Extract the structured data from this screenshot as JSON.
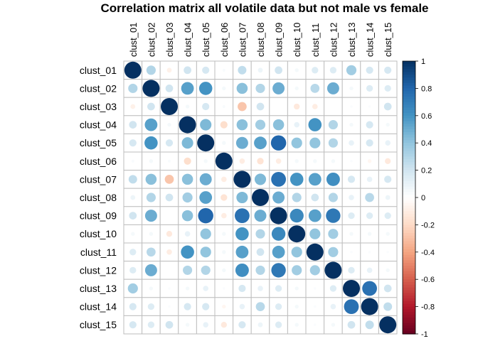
{
  "chart_data": {
    "type": "heatmap",
    "title": "Correlation matrix all volatile data but not male vs female",
    "labels": [
      "clust_01",
      "clust_02",
      "clust_03",
      "clust_04",
      "clust_05",
      "clust_06",
      "clust_07",
      "clust_08",
      "clust_09",
      "clust_10",
      "clust_11",
      "clust_12",
      "clust_13",
      "clust_14",
      "clust_15"
    ],
    "matrix": [
      [
        1.0,
        0.3,
        -0.08,
        0.2,
        0.18,
        0.03,
        0.25,
        0.08,
        0.2,
        0.05,
        0.15,
        0.15,
        0.35,
        0.18,
        0.18
      ],
      [
        0.3,
        1.0,
        0.2,
        0.55,
        0.6,
        0.05,
        0.42,
        0.3,
        0.5,
        0.05,
        0.28,
        0.5,
        0.05,
        0.15,
        0.15
      ],
      [
        -0.08,
        0.2,
        1.0,
        0.05,
        0.18,
        0.03,
        -0.28,
        0.2,
        0.0,
        -0.12,
        -0.1,
        0.0,
        0.02,
        0.02,
        0.2
      ],
      [
        0.2,
        0.55,
        0.05,
        1.0,
        0.45,
        -0.18,
        0.42,
        0.35,
        0.42,
        0.1,
        0.6,
        0.3,
        0.05,
        0.18,
        0.05
      ],
      [
        0.18,
        0.6,
        0.18,
        0.45,
        1.0,
        0.05,
        0.5,
        0.55,
        0.8,
        0.4,
        0.4,
        0.3,
        0.1,
        0.18,
        0.1
      ],
      [
        0.03,
        0.05,
        0.03,
        -0.18,
        0.05,
        1.0,
        -0.1,
        -0.15,
        -0.1,
        0.05,
        0.05,
        0.05,
        0.02,
        -0.05,
        -0.12
      ],
      [
        0.25,
        0.42,
        -0.28,
        0.42,
        0.5,
        -0.1,
        1.0,
        0.45,
        0.75,
        0.6,
        0.55,
        0.62,
        0.18,
        0.1,
        0.18
      ],
      [
        0.08,
        0.3,
        0.2,
        0.35,
        0.55,
        -0.15,
        0.45,
        1.0,
        0.5,
        0.3,
        0.2,
        0.3,
        0.1,
        0.28,
        0.08
      ],
      [
        0.2,
        0.5,
        0.0,
        0.42,
        0.8,
        -0.1,
        0.75,
        0.5,
        1.0,
        0.65,
        0.55,
        0.72,
        0.15,
        0.15,
        0.15
      ],
      [
        0.05,
        0.05,
        -0.12,
        0.1,
        0.4,
        0.05,
        0.6,
        0.3,
        0.65,
        1.0,
        0.4,
        0.35,
        0.05,
        0.05,
        0.05
      ],
      [
        0.15,
        0.28,
        -0.1,
        0.6,
        0.4,
        0.05,
        0.55,
        0.2,
        0.55,
        0.4,
        1.0,
        0.35,
        0.02,
        0.02,
        0.02
      ],
      [
        0.15,
        0.5,
        0.0,
        0.3,
        0.3,
        0.05,
        0.62,
        0.3,
        0.72,
        0.35,
        0.35,
        1.0,
        0.15,
        0.1,
        0.05
      ],
      [
        0.35,
        0.05,
        0.02,
        0.05,
        0.1,
        0.02,
        0.18,
        0.1,
        0.15,
        0.05,
        0.02,
        0.15,
        1.0,
        0.75,
        0.2
      ],
      [
        0.18,
        0.15,
        0.02,
        0.18,
        0.18,
        -0.05,
        0.1,
        0.28,
        0.15,
        0.05,
        0.02,
        0.1,
        0.75,
        1.0,
        0.25
      ],
      [
        0.18,
        0.15,
        0.2,
        0.05,
        0.1,
        -0.12,
        0.18,
        0.08,
        0.15,
        0.05,
        0.02,
        0.05,
        0.2,
        0.25,
        1.0
      ]
    ],
    "colorbar": {
      "range": [
        -1,
        1
      ],
      "ticks": [
        "-1",
        "-0.8",
        "-0.6",
        "-0.4",
        "-0.2",
        "0",
        "0.2",
        "0.4",
        "0.6",
        "0.8",
        "1"
      ],
      "colors": [
        "#67001F",
        "#B2182B",
        "#D6604D",
        "#F4A582",
        "#FDDBC7",
        "#FFFFFF",
        "#D1E5F0",
        "#92C5DE",
        "#4393C3",
        "#2166AC",
        "#053061"
      ]
    },
    "grid": true,
    "marker": "circle",
    "legend": "right"
  }
}
